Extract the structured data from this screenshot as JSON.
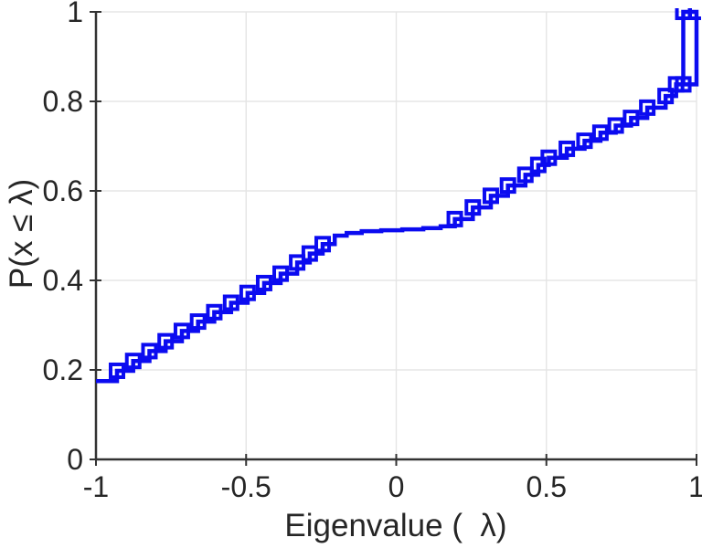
{
  "figure": {
    "background": "#ffffff",
    "axis_color": "#333333",
    "grid_color": "#e5e5e5",
    "tick_label_color": "#262626"
  },
  "chart_data": {
    "type": "line",
    "subtype": "empirical-cdf-stairs",
    "title": "",
    "xlabel": "Eigenvalue (  λ)",
    "ylabel": "P(x ≤ λ)",
    "xlim": [
      -1,
      1
    ],
    "ylim": [
      0,
      1
    ],
    "x_ticks": [
      -1,
      -0.5,
      0,
      0.5,
      1
    ],
    "x_tick_labels": [
      "-1",
      "-0.5",
      "0",
      "0.5",
      "1"
    ],
    "y_ticks": [
      0,
      0.2,
      0.4,
      0.6,
      0.8,
      1
    ],
    "y_tick_labels": [
      "0",
      "0.2",
      "0.4",
      "0.6",
      "0.8",
      "1"
    ],
    "grid": true,
    "legend": "none",
    "line_color": "#0b0bf0",
    "line_width": 4.5,
    "marker": "square-open",
    "marker_size": 14,
    "points_format": "[lambda, P(x<=lambda), has_marker]",
    "series": [
      {
        "name": "eigenvalue-ecdf",
        "points": [
          [
            -1.0,
            0.175,
            0
          ],
          [
            -0.93,
            0.198,
            1
          ],
          [
            -0.876,
            0.22,
            1
          ],
          [
            -0.822,
            0.242,
            1
          ],
          [
            -0.768,
            0.264,
            1
          ],
          [
            -0.714,
            0.287,
            1
          ],
          [
            -0.66,
            0.308,
            1
          ],
          [
            -0.606,
            0.329,
            1
          ],
          [
            -0.55,
            0.35,
            1
          ],
          [
            -0.495,
            0.372,
            1
          ],
          [
            -0.44,
            0.394,
            1
          ],
          [
            -0.385,
            0.415,
            1
          ],
          [
            -0.33,
            0.44,
            1
          ],
          [
            -0.288,
            0.46,
            1
          ],
          [
            -0.245,
            0.481,
            1
          ],
          [
            -0.205,
            0.5,
            0
          ],
          [
            -0.165,
            0.506,
            0
          ],
          [
            -0.115,
            0.51,
            0
          ],
          [
            -0.05,
            0.512,
            0
          ],
          [
            0.02,
            0.514,
            0
          ],
          [
            0.09,
            0.517,
            0
          ],
          [
            0.148,
            0.521,
            0
          ],
          [
            0.195,
            0.537,
            1
          ],
          [
            0.255,
            0.563,
            1
          ],
          [
            0.315,
            0.589,
            1
          ],
          [
            0.372,
            0.612,
            1
          ],
          [
            0.43,
            0.636,
            1
          ],
          [
            0.473,
            0.658,
            1
          ],
          [
            0.508,
            0.674,
            1
          ],
          [
            0.568,
            0.694,
            1
          ],
          [
            0.627,
            0.712,
            1
          ],
          [
            0.68,
            0.73,
            1
          ],
          [
            0.731,
            0.746,
            1
          ],
          [
            0.782,
            0.763,
            1
          ],
          [
            0.836,
            0.786,
            1
          ],
          [
            0.897,
            0.812,
            1
          ],
          [
            0.932,
            0.838,
            1
          ],
          [
            0.956,
            1.0,
            1
          ],
          [
            1.0,
            1.0,
            1
          ],
          [
            1.0,
            0.838,
            0
          ],
          [
            0.956,
            0.838,
            1
          ]
        ]
      }
    ]
  }
}
